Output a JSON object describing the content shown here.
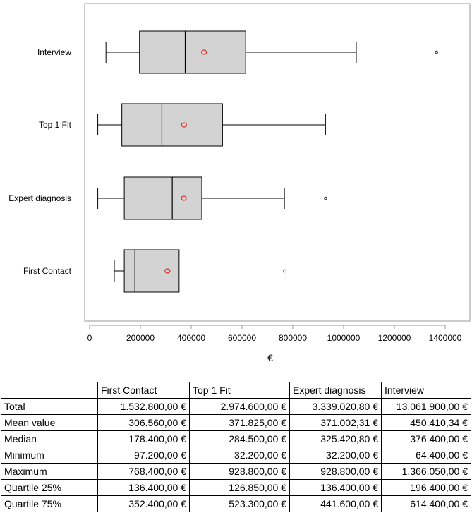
{
  "chart_data": {
    "type": "boxplot",
    "orientation": "horizontal",
    "xlabel": "€",
    "xlim": [
      0,
      1400000
    ],
    "xticks": [
      0,
      200000,
      400000,
      600000,
      800000,
      1000000,
      1200000,
      1400000
    ],
    "xtick_labels": [
      "0",
      "200000",
      "400000",
      "600000",
      "800000",
      "1000000",
      "1200000",
      "1400000"
    ],
    "categories": [
      "Interview",
      "Top 1 Fit",
      "Expert diagnosis",
      "First Contact"
    ],
    "boxes": [
      {
        "name": "Interview",
        "whisker_low": 64400,
        "q1": 196400,
        "median": 376400,
        "q3": 614400,
        "whisker_high": 1050000,
        "mean": 450410,
        "outliers": [
          1366050
        ]
      },
      {
        "name": "Top 1 Fit",
        "whisker_low": 32200,
        "q1": 126850,
        "median": 284500,
        "q3": 523300,
        "whisker_high": 928800,
        "mean": 371825,
        "outliers": []
      },
      {
        "name": "Expert diagnosis",
        "whisker_low": 32200,
        "q1": 136400,
        "median": 325420,
        "q3": 441600,
        "whisker_high": 767000,
        "mean": 371002,
        "outliers": [
          928800
        ]
      },
      {
        "name": "First Contact",
        "whisker_low": 97200,
        "q1": 136400,
        "median": 178400,
        "q3": 352400,
        "whisker_high": 352400,
        "mean": 306560,
        "outliers": [
          768400
        ]
      }
    ],
    "colors": {
      "box_fill": "#d3d3d3",
      "mean_marker": "#d9362b",
      "axis": "#999999"
    },
    "grid": false,
    "legend": "none"
  },
  "table": {
    "headers": [
      "",
      "First Contact",
      "Top 1 Fit",
      "Expert diagnosis",
      "Interview"
    ],
    "rows": [
      {
        "label": "Total",
        "values": [
          "1.532.800,00 €",
          "2.974.600,00 €",
          "3.339.020,80 €",
          "13.061.900,00 €"
        ]
      },
      {
        "label": "Mean value",
        "values": [
          "306.560,00 €",
          "371.825,00 €",
          "371.002,31 €",
          "450.410,34 €"
        ]
      },
      {
        "label": "Median",
        "values": [
          "178.400,00 €",
          "284.500,00 €",
          "325.420,80 €",
          "376.400,00 €"
        ]
      },
      {
        "label": "Minimum",
        "values": [
          "97.200,00 €",
          "32.200,00 €",
          "32.200,00 €",
          "64.400,00 €"
        ]
      },
      {
        "label": "Maximum",
        "values": [
          "768.400,00 €",
          "928.800,00 €",
          "928.800,00 €",
          "1.366.050,00 €"
        ]
      },
      {
        "label": "Quartile 25%",
        "values": [
          "136.400,00 €",
          "126.850,00 €",
          "136.400,00 €",
          "196.400,00 €"
        ]
      },
      {
        "label": "Quartile 75%",
        "values": [
          "352.400,00 €",
          "523.300,00 €",
          "441.600,00 €",
          "614.400,00 €"
        ]
      }
    ]
  }
}
